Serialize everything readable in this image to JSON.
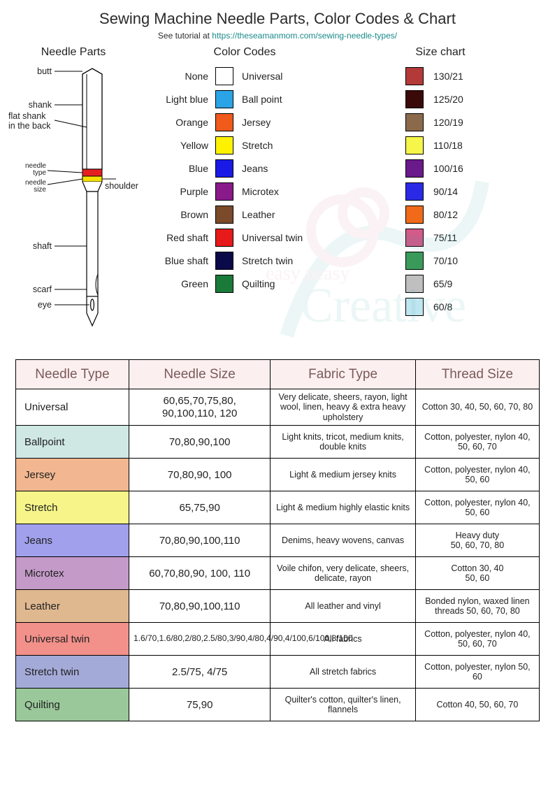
{
  "header": {
    "title": "Sewing Machine Needle Parts, Color Codes & Chart",
    "subtitle_prefix": "See tutorial at ",
    "subtitle_url": "https://theseamanmom.com/sewing-needle-types/"
  },
  "sections": {
    "needle_parts_title": "Needle Parts",
    "color_codes_title": "Color Codes",
    "size_chart_title": "Size chart"
  },
  "needle_parts": {
    "labels": {
      "butt": "butt",
      "shank": "shank",
      "flat_shank_1": "flat shank",
      "flat_shank_2": "in the back",
      "needle_type_1": "needle",
      "needle_type_2": "type",
      "needle_size_1": "needle",
      "needle_size_2": "size",
      "shoulder": "shoulder",
      "shaft": "shaft",
      "scarf": "scarf",
      "eye": "eye"
    },
    "colors": {
      "outline": "#000000",
      "fill": "#ffffff",
      "type_band": "#e62020",
      "size_band": "#f5e000",
      "shoulder_line": "#000000"
    }
  },
  "color_codes": [
    {
      "left": "None",
      "color": "#ffffff",
      "right": "Universal"
    },
    {
      "left": "Light blue",
      "color": "#2aa4e6",
      "right": "Ball point"
    },
    {
      "left": "Orange",
      "color": "#f05a1a",
      "right": "Jersey"
    },
    {
      "left": "Yellow",
      "color": "#fff200",
      "right": "Stretch"
    },
    {
      "left": "Blue",
      "color": "#1a1ae6",
      "right": "Jeans"
    },
    {
      "left": "Purple",
      "color": "#8a1a8a",
      "right": "Microtex"
    },
    {
      "left": "Brown",
      "color": "#7a4a2a",
      "right": "Leather"
    },
    {
      "left": "Red shaft",
      "color": "#e61a1a",
      "right": "Universal twin"
    },
    {
      "left": "Blue shaft",
      "color": "#0a0a4a",
      "right": "Stretch twin"
    },
    {
      "left": "Green",
      "color": "#1a7a3a",
      "right": "Quilting"
    }
  ],
  "size_chart": [
    {
      "color": "#b43a3a",
      "label": "130/21"
    },
    {
      "color": "#3a0a0a",
      "label": "125/20"
    },
    {
      "color": "#8a6a4a",
      "label": "120/19"
    },
    {
      "color": "#f5f54a",
      "label": "110/18"
    },
    {
      "color": "#6a1a8a",
      "label": "100/16"
    },
    {
      "color": "#2a2ae6",
      "label": "90/14"
    },
    {
      "color": "#f06a1a",
      "label": "80/12"
    },
    {
      "color": "#d45a8a",
      "label": "75/11"
    },
    {
      "color": "#3a9a5a",
      "label": "70/10"
    },
    {
      "color": "#bfbfbf",
      "label": "65/9"
    },
    {
      "color": "#bfe6f0",
      "label": "60/8"
    }
  ],
  "table": {
    "headers": {
      "needle_type": "Needle Type",
      "needle_size": "Needle Size",
      "fabric_type": "Fabric Type",
      "thread_size": "Thread Size"
    },
    "header_bg": "#fcefef",
    "header_color": "#7a5a5a",
    "rows": [
      {
        "bg": "#ffffff",
        "type": "Universal",
        "size": "60,65,70,75,80,\n90,100,110, 120",
        "fabric": "Very delicate, sheers, rayon, light wool, linen, heavy & extra heavy upholstery",
        "thread": "Cotton 30, 40, 50, 60, 70, 80"
      },
      {
        "bg": "#cfe8e4",
        "type": "Ballpoint",
        "size": "70,80,90,100",
        "fabric": "Light knits, tricot, medium knits, double knits",
        "thread": "Cotton, polyester, nylon 40, 50, 60, 70"
      },
      {
        "bg": "#f2b790",
        "type": "Jersey",
        "size": "70,80,90, 100",
        "fabric": "Light & medium jersey knits",
        "thread": "Cotton, polyester, nylon 40, 50, 60"
      },
      {
        "bg": "#f7f58a",
        "type": "Stretch",
        "size": "65,75,90",
        "fabric": "Light & medium highly elastic knits",
        "thread": "Cotton, polyester, nylon 40, 50, 60"
      },
      {
        "bg": "#a0a0ec",
        "type": "Jeans",
        "size": "70,80,90,100,110",
        "fabric": "Denims, heavy wovens, canvas",
        "thread": "Heavy duty\n50, 60, 70, 80"
      },
      {
        "bg": "#c49ac8",
        "type": "Microtex",
        "size": "60,70,80,90, 100, 110",
        "fabric": "Voile chifon, very delicate, sheers, delicate, rayon",
        "thread": "Cotton 30, 40\n50, 60"
      },
      {
        "bg": "#e0b890",
        "type": "Leather",
        "size": "70,80,90,100,110",
        "fabric": "All leather and vinyl",
        "thread": "Bonded nylon, waxed linen threads 50, 60, 70, 80"
      },
      {
        "bg": "#f2908a",
        "type": "Universal twin",
        "size": "1.6/70,1.6/80,2/80,2.5/80,3/90,4/80,4/90,4/100,6/100,8/100",
        "size_small": true,
        "fabric": "All fabrics",
        "thread": "Cotton, polyester, nylon 40, 50, 60, 70"
      },
      {
        "bg": "#a4aad8",
        "type": "Stretch twin",
        "size": "2.5/75, 4/75",
        "fabric": "All stretch fabrics",
        "thread": "Cotton, polyester, nylon 50, 60"
      },
      {
        "bg": "#9ac89a",
        "type": "Quilting",
        "size": "75,90",
        "fabric": "Quilter's cotton, quilter's linen, flannels",
        "thread": "Cotton 40, 50, 60, 70"
      }
    ]
  }
}
